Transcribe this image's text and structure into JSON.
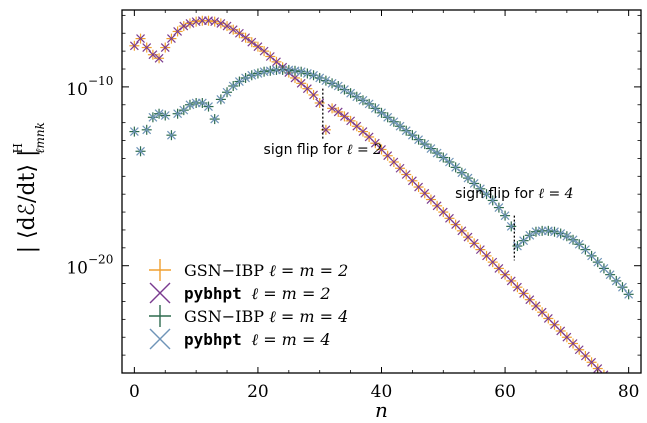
{
  "chart_data": {
    "type": "scatter",
    "title": "",
    "xlabel": "n",
    "ylabel": "| ⟨dℰ/dt⟩",
    "ylabel_sup": "H",
    "ylabel_sub": "ℓmnk",
    "xlim": [
      -2,
      82
    ],
    "ylim_log10": [
      -26,
      -5.7
    ],
    "yscale": "log",
    "xticks": [
      0,
      20,
      40,
      60,
      80
    ],
    "xtick_labels": [
      "0",
      "20",
      "40",
      "60",
      "80"
    ],
    "yticks_log10": [
      -10,
      -20
    ],
    "ytick_labels": [
      "10",
      "10"
    ],
    "ytick_exponents": [
      "−10",
      "−20"
    ],
    "legend_location": "lower-left",
    "series": [
      {
        "name": "GSN−IBP ℓ = m = 2",
        "legend_main": "GSN−IBP",
        "legend_math": "ℓ = m = 2",
        "marker": "plus",
        "color": "#f0a030"
      },
      {
        "name": "pybhpt ℓ = m = 2",
        "legend_main": "pybhpt",
        "legend_math": "ℓ = m = 2",
        "marker": "x",
        "color": "#7a3b8f"
      },
      {
        "name": "GSN−IBP ℓ = m = 4",
        "legend_main": "GSN−IBP",
        "legend_math": "ℓ = m = 4",
        "marker": "plus",
        "color": "#2e6b4f"
      },
      {
        "name": "pybhpt ℓ = m = 4",
        "legend_main": "pybhpt",
        "legend_math": "ℓ = m = 4",
        "marker": "x",
        "color": "#6f94b8"
      }
    ],
    "curve_l2": {
      "x": [
        0,
        1,
        2,
        3,
        4,
        5,
        6,
        7,
        8,
        9,
        10,
        11,
        12,
        13,
        14,
        15,
        16,
        17,
        18,
        19,
        20,
        21,
        22,
        23,
        24,
        25,
        26,
        27,
        28,
        29,
        30,
        31,
        32,
        33,
        34,
        35,
        36,
        37,
        38,
        39,
        40,
        41,
        42,
        43,
        44,
        45,
        46,
        47,
        48,
        49,
        50,
        51,
        52,
        53,
        54,
        55,
        56,
        57,
        58,
        59,
        60,
        61,
        62,
        63,
        64,
        65,
        66,
        67,
        68,
        69,
        70,
        71,
        72,
        73,
        74,
        75,
        76,
        77,
        78,
        79,
        80
      ],
      "log10_y": [
        -7.7,
        -7.3,
        -7.8,
        -8.2,
        -8.4,
        -7.8,
        -7.3,
        -6.9,
        -6.6,
        -6.45,
        -6.35,
        -6.3,
        -6.3,
        -6.35,
        -6.45,
        -6.6,
        -6.8,
        -7.0,
        -7.25,
        -7.5,
        -7.75,
        -8.0,
        -8.3,
        -8.6,
        -8.9,
        -9.2,
        -9.5,
        -9.8,
        -10.1,
        -10.45,
        -10.9,
        -12.4,
        -11.2,
        -11.4,
        -11.65,
        -11.9,
        -12.2,
        -12.5,
        -12.8,
        -13.15,
        -13.5,
        -13.85,
        -14.2,
        -14.55,
        -14.9,
        -15.25,
        -15.6,
        -15.95,
        -16.3,
        -16.65,
        -17.0,
        -17.35,
        -17.7,
        -18.05,
        -18.4,
        -18.75,
        -19.1,
        -19.45,
        -19.8,
        -20.15,
        -20.5,
        -20.85,
        -21.2,
        -21.55,
        -21.9,
        -22.25,
        -22.6,
        -22.95,
        -23.3,
        -23.65,
        -24.0,
        -24.35,
        -24.7,
        -25.05,
        -25.4,
        -25.75,
        -26.1,
        -26.45,
        -26.8,
        -27.15,
        -27.5
      ]
    },
    "curve_l4": {
      "x": [
        0,
        1,
        2,
        3,
        4,
        5,
        6,
        7,
        8,
        9,
        10,
        11,
        12,
        13,
        14,
        15,
        16,
        17,
        18,
        19,
        20,
        21,
        22,
        23,
        24,
        25,
        26,
        27,
        28,
        29,
        30,
        31,
        32,
        33,
        34,
        35,
        36,
        37,
        38,
        39,
        40,
        41,
        42,
        43,
        44,
        45,
        46,
        47,
        48,
        49,
        50,
        51,
        52,
        53,
        54,
        55,
        56,
        57,
        58,
        59,
        60,
        61,
        62,
        63,
        64,
        65,
        66,
        67,
        68,
        69,
        70,
        71,
        72,
        73,
        74,
        75,
        76,
        77,
        78,
        79,
        80
      ],
      "log10_y": [
        -12.5,
        -13.6,
        -12.4,
        -11.7,
        -11.5,
        -11.6,
        -12.7,
        -11.5,
        -11.3,
        -11.0,
        -10.9,
        -10.9,
        -11.1,
        -11.8,
        -10.7,
        -10.3,
        -9.95,
        -9.7,
        -9.5,
        -9.35,
        -9.25,
        -9.15,
        -9.1,
        -9.05,
        -9.05,
        -9.05,
        -9.1,
        -9.15,
        -9.25,
        -9.35,
        -9.5,
        -9.65,
        -9.8,
        -9.95,
        -10.15,
        -10.35,
        -10.55,
        -10.75,
        -10.95,
        -11.2,
        -11.45,
        -11.7,
        -11.95,
        -12.2,
        -12.45,
        -12.7,
        -12.95,
        -13.2,
        -13.45,
        -13.7,
        -13.95,
        -14.2,
        -14.5,
        -14.8,
        -15.1,
        -15.4,
        -15.7,
        -16.0,
        -16.35,
        -16.75,
        -17.2,
        -17.8,
        -18.9,
        -18.6,
        -18.3,
        -18.1,
        -18.05,
        -18.05,
        -18.1,
        -18.2,
        -18.35,
        -18.55,
        -18.8,
        -19.1,
        -19.45,
        -19.8,
        -20.15,
        -20.5,
        -20.85,
        -21.2,
        -21.6
      ]
    },
    "annotations": [
      {
        "text": "sign flip for ",
        "math": "ℓ = 2",
        "x": 30.5,
        "line_top_log10": -10.1,
        "line_bottom_log10": -12.9,
        "text_log10": -13.75,
        "anchor": "middle"
      },
      {
        "text": "sign flip for ",
        "math": "ℓ = 4",
        "x": 61.5,
        "line_top_log10": -17.2,
        "line_bottom_log10": -19.7,
        "text_log10": -16.2,
        "anchor": "middle"
      }
    ]
  }
}
